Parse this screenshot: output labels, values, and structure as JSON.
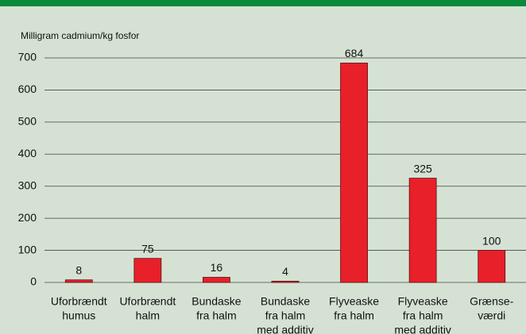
{
  "chart_data": {
    "type": "bar",
    "y_axis_label": "Milligram cadmium/kg fosfor",
    "categories": [
      [
        "Uforbrændt",
        "humus"
      ],
      [
        "Uforbrændt",
        "halm"
      ],
      [
        "Bundaske",
        "fra halm"
      ],
      [
        "Bundaske",
        "fra halm",
        "med additiv"
      ],
      [
        "Flyveaske",
        "fra halm"
      ],
      [
        "Flyveaske",
        "fra halm",
        "med additiv"
      ],
      [
        "Grænse-",
        "værdi"
      ]
    ],
    "values": [
      8,
      75,
      16,
      4,
      684,
      325,
      100
    ],
    "color": "#e8202a",
    "ylim": [
      0,
      700
    ],
    "yticks": [
      0,
      100,
      200,
      300,
      400,
      500,
      600,
      700
    ],
    "grid": true
  }
}
